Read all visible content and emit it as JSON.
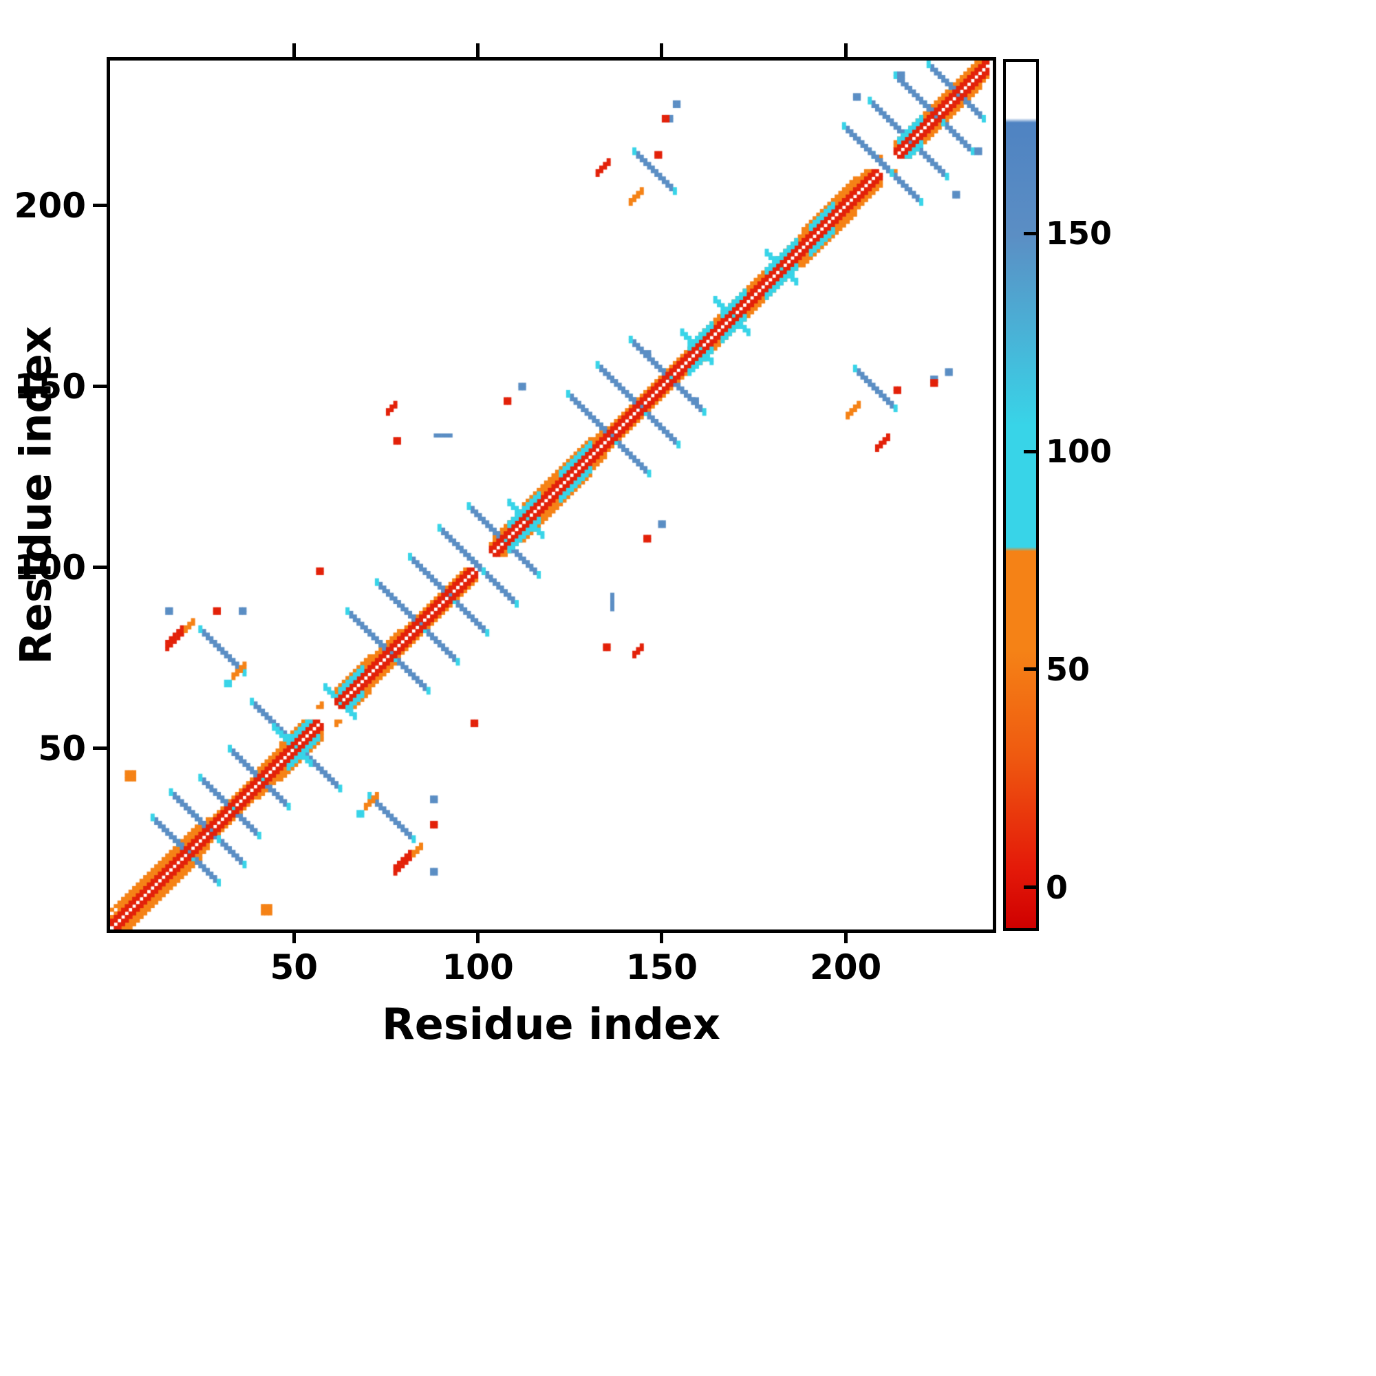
{
  "figure": {
    "background": "#ffffff"
  },
  "chart_data": {
    "type": "heatmap",
    "title": "",
    "xlabel": "Residue index",
    "ylabel": "Residue index",
    "xlim": [
      0,
      240
    ],
    "ylim": [
      0,
      240
    ],
    "xticks": [
      50,
      100,
      150,
      200
    ],
    "yticks": [
      50,
      100,
      150,
      200
    ],
    "grid": false,
    "legend": "colorbar-right",
    "palette": {
      "red": "#e32109",
      "orange": "#f58216",
      "cyan": "#38d4e8",
      "blue": "#5b8ec4",
      "frame": "#000000",
      "background": "#ffffff"
    },
    "colorbar": {
      "ticks": [
        0,
        50,
        100,
        150
      ],
      "vmin": -10,
      "vmax": 190,
      "stops": [
        {
          "pos": 0.0,
          "color": "#cf0000"
        },
        {
          "pos": 0.07,
          "color": "#e41a09"
        },
        {
          "pos": 0.2,
          "color": "#ef5a10"
        },
        {
          "pos": 0.32,
          "color": "#f58216"
        },
        {
          "pos": 0.435,
          "color": "#f58216"
        },
        {
          "pos": 0.44,
          "color": "#38d4e8"
        },
        {
          "pos": 0.58,
          "color": "#38d4e8"
        },
        {
          "pos": 0.8,
          "color": "#5b8ec4"
        },
        {
          "pos": 0.93,
          "color": "#4f83c2"
        },
        {
          "pos": 0.935,
          "color": "#ffffff"
        },
        {
          "pos": 1.0,
          "color": "#ffffff"
        }
      ]
    },
    "diagonal": {
      "n": 238,
      "gaps": [
        [
          58,
          60
        ],
        [
          100,
          102
        ],
        [
          210,
          212
        ]
      ],
      "bands": [
        {
          "range": [
            0,
            238
          ],
          "off": 1,
          "color": "red"
        },
        {
          "range": [
            0,
            238
          ],
          "off": 2,
          "color": "red"
        },
        {
          "range": [
            0,
            238
          ],
          "off": 3,
          "color": "orange"
        },
        {
          "range": [
            2,
            26
          ],
          "off": 4,
          "color": "orange"
        },
        {
          "range": [
            0,
            24
          ],
          "off": 5,
          "color": "orange"
        },
        {
          "range": [
            40,
            78
          ],
          "off": 4,
          "color": "orange"
        },
        {
          "range": [
            46,
            70
          ],
          "off": 5,
          "color": "orange"
        },
        {
          "range": [
            104,
            134
          ],
          "off": 4,
          "color": "orange"
        },
        {
          "range": [
            112,
            130
          ],
          "off": 5,
          "color": "orange"
        },
        {
          "range": [
            160,
            204
          ],
          "off": 4,
          "color": "orange"
        },
        {
          "range": [
            188,
            202
          ],
          "off": 5,
          "color": "orange"
        },
        {
          "range": [
            205,
            236
          ],
          "off": 4,
          "color": "orange"
        }
      ],
      "cyan_ranges": [
        [
          48,
          56
        ],
        [
          62,
          68
        ],
        [
          108,
          116
        ],
        [
          122,
          130
        ],
        [
          157,
          163
        ],
        [
          166,
          172
        ],
        [
          178,
          186
        ],
        [
          190,
          196
        ],
        [
          214,
          220
        ]
      ]
    },
    "segments": [
      {
        "x": 24,
        "y": 17,
        "o": "a",
        "l": 10,
        "w": 2,
        "c": "blue",
        "tips": "cyan"
      },
      {
        "x": 30,
        "y": 23,
        "o": "a",
        "l": 12,
        "w": 2,
        "c": "blue",
        "tips": "cyan"
      },
      {
        "x": 36,
        "y": 29,
        "o": "a",
        "l": 8,
        "w": 2,
        "c": "blue",
        "tips": "cyan"
      },
      {
        "x": 44,
        "y": 37,
        "o": "a",
        "l": 8,
        "w": 2,
        "c": "blue",
        "tips": "cyan"
      },
      {
        "x": 57,
        "y": 43,
        "o": "a",
        "l": 9,
        "w": 2,
        "c": "blue",
        "tips": "cyan"
      },
      {
        "x": 76,
        "y": 30,
        "o": "a",
        "l": 11,
        "w": 2,
        "c": "blue",
        "tips": "cyan"
      },
      {
        "x": 80,
        "y": 71,
        "o": "a",
        "l": 12,
        "w": 2,
        "c": "blue",
        "tips": "cyan"
      },
      {
        "x": 88,
        "y": 79,
        "o": "a",
        "l": 12,
        "w": 2,
        "c": "blue",
        "tips": "cyan"
      },
      {
        "x": 96,
        "y": 87,
        "o": "a",
        "l": 11,
        "w": 2,
        "c": "blue",
        "tips": "cyan"
      },
      {
        "x": 104,
        "y": 95,
        "o": "a",
        "l": 11,
        "w": 2,
        "c": "blue",
        "tips": "cyan"
      },
      {
        "x": 111,
        "y": 102,
        "o": "a",
        "l": 9,
        "w": 2,
        "c": "blue",
        "tips": "cyan"
      },
      {
        "x": 140,
        "y": 131,
        "o": "a",
        "l": 12,
        "w": 2,
        "c": "blue",
        "tips": "cyan"
      },
      {
        "x": 148,
        "y": 139,
        "o": "a",
        "l": 12,
        "w": 2,
        "c": "blue",
        "tips": "cyan"
      },
      {
        "x": 156,
        "y": 147,
        "o": "a",
        "l": 10,
        "w": 2,
        "c": "blue",
        "tips": "cyan"
      },
      {
        "x": 214,
        "y": 206,
        "o": "a",
        "l": 12,
        "w": 2,
        "c": "blue",
        "tips": "cyan"
      },
      {
        "x": 221,
        "y": 213,
        "o": "a",
        "l": 12,
        "w": 2,
        "c": "blue",
        "tips": "cyan"
      },
      {
        "x": 228,
        "y": 220,
        "o": "a",
        "l": 12,
        "w": 2,
        "c": "blue",
        "tips": "cyan"
      },
      {
        "x": 233,
        "y": 227,
        "o": "a",
        "l": 8,
        "w": 2,
        "c": "blue",
        "tips": "cyan"
      },
      {
        "x": 208,
        "y": 148,
        "o": "a",
        "l": 10,
        "w": 2,
        "c": "blue",
        "tips": "cyan"
      },
      {
        "x": 202,
        "y": 143,
        "o": "d",
        "l": 4,
        "w": 2,
        "c": "orange"
      },
      {
        "x": 52,
        "y": 47,
        "o": "a",
        "l": 6,
        "w": 2,
        "c": "cyan"
      },
      {
        "x": 64,
        "y": 60,
        "o": "a",
        "l": 5,
        "w": 2,
        "c": "cyan"
      },
      {
        "x": 115,
        "y": 110,
        "o": "a",
        "l": 5,
        "w": 2,
        "c": "cyan"
      },
      {
        "x": 171,
        "y": 166,
        "o": "a",
        "l": 5,
        "w": 2,
        "c": "cyan"
      },
      {
        "x": 184,
        "y": 180,
        "o": "a",
        "l": 5,
        "w": 2,
        "c": "cyan"
      },
      {
        "x": 162,
        "y": 157,
        "o": "a",
        "l": 4,
        "w": 2,
        "c": "cyan"
      },
      {
        "x": 150,
        "y": 112,
        "o": "b",
        "l": 2,
        "c": "blue"
      },
      {
        "x": 146,
        "y": 108,
        "o": "b",
        "l": 2,
        "c": "red"
      },
      {
        "x": 143,
        "y": 76,
        "o": "d",
        "l": 3,
        "w": 2,
        "c": "red"
      },
      {
        "x": 135,
        "y": 78,
        "o": "b",
        "l": 2,
        "c": "red"
      },
      {
        "x": 90,
        "y": 136,
        "o": "h",
        "l": 5,
        "w": 1,
        "c": "blue"
      },
      {
        "x": 79,
        "y": 17,
        "o": "d",
        "l": 5,
        "w": 3,
        "c": "red"
      },
      {
        "x": 83,
        "y": 21,
        "o": "d",
        "l": 3,
        "w": 2,
        "c": "orange"
      },
      {
        "x": 71,
        "y": 35,
        "o": "d",
        "l": 4,
        "w": 2,
        "c": "orange"
      },
      {
        "x": 68,
        "y": 32,
        "o": "b",
        "l": 2,
        "c": "cyan"
      },
      {
        "x": 42,
        "y": 5,
        "o": "b",
        "l": 3,
        "c": "orange"
      },
      {
        "x": 99,
        "y": 57,
        "o": "b",
        "l": 2,
        "c": "red"
      },
      {
        "x": 88,
        "y": 16,
        "o": "b",
        "l": 2,
        "c": "blue"
      },
      {
        "x": 88,
        "y": 29,
        "o": "b",
        "l": 2,
        "c": "red"
      },
      {
        "x": 88,
        "y": 36,
        "o": "b",
        "l": 2,
        "c": "blue"
      },
      {
        "x": 210,
        "y": 134,
        "o": "d",
        "l": 4,
        "w": 2,
        "c": "red"
      },
      {
        "x": 214,
        "y": 149,
        "o": "b",
        "l": 2,
        "c": "red"
      },
      {
        "x": 224,
        "y": 152,
        "o": "b",
        "l": 2,
        "c": "blue"
      },
      {
        "x": 151,
        "y": 224,
        "o": "b",
        "l": 2,
        "c": "red"
      },
      {
        "x": 154,
        "y": 228,
        "o": "b",
        "l": 2,
        "c": "blue"
      },
      {
        "x": 159,
        "y": 146,
        "o": "b",
        "l": 2,
        "c": "blue"
      },
      {
        "x": 236,
        "y": 215,
        "o": "b",
        "l": 2,
        "c": "blue"
      },
      {
        "x": 230,
        "y": 203,
        "o": "b",
        "l": 2,
        "c": "blue"
      }
    ]
  }
}
